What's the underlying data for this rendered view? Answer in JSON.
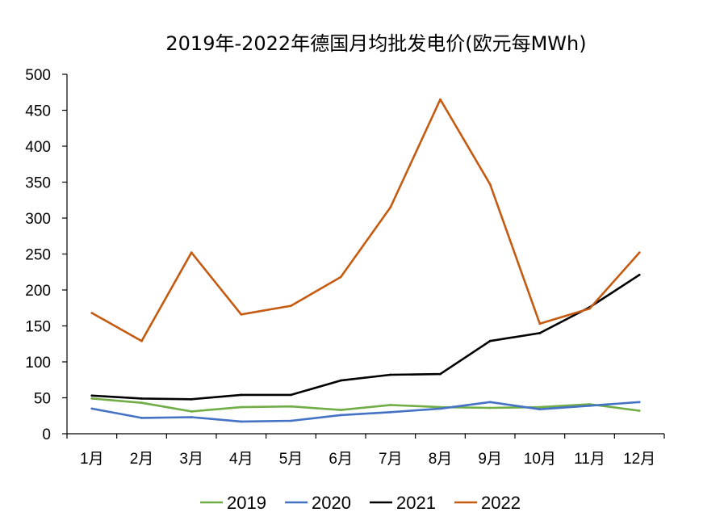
{
  "chart_data": {
    "type": "line",
    "title": "2019年-2022年德国月均批发电价(欧元每MWh)",
    "xlabel": "",
    "ylabel": "",
    "categories": [
      "1月",
      "2月",
      "3月",
      "4月",
      "5月",
      "6月",
      "7月",
      "8月",
      "9月",
      "10月",
      "11月",
      "12月"
    ],
    "ylim": [
      0,
      500
    ],
    "yticks": [
      0,
      50,
      100,
      150,
      200,
      250,
      300,
      350,
      400,
      450,
      500
    ],
    "grid": false,
    "legend_position": "bottom",
    "series": [
      {
        "name": "2019",
        "color": "#70ad47",
        "values": [
          49,
          43,
          31,
          37,
          38,
          33,
          40,
          37,
          36,
          37,
          41,
          32
        ]
      },
      {
        "name": "2020",
        "color": "#4472c4",
        "values": [
          35,
          22,
          23,
          17,
          18,
          26,
          30,
          35,
          44,
          34,
          39,
          44
        ]
      },
      {
        "name": "2021",
        "color": "#000000",
        "values": [
          53,
          49,
          48,
          54,
          54,
          74,
          82,
          83,
          129,
          140,
          176,
          221
        ]
      },
      {
        "name": "2022",
        "color": "#c55a11",
        "values": [
          168,
          129,
          252,
          166,
          178,
          218,
          315,
          465,
          347,
          153,
          174,
          252
        ]
      }
    ]
  }
}
